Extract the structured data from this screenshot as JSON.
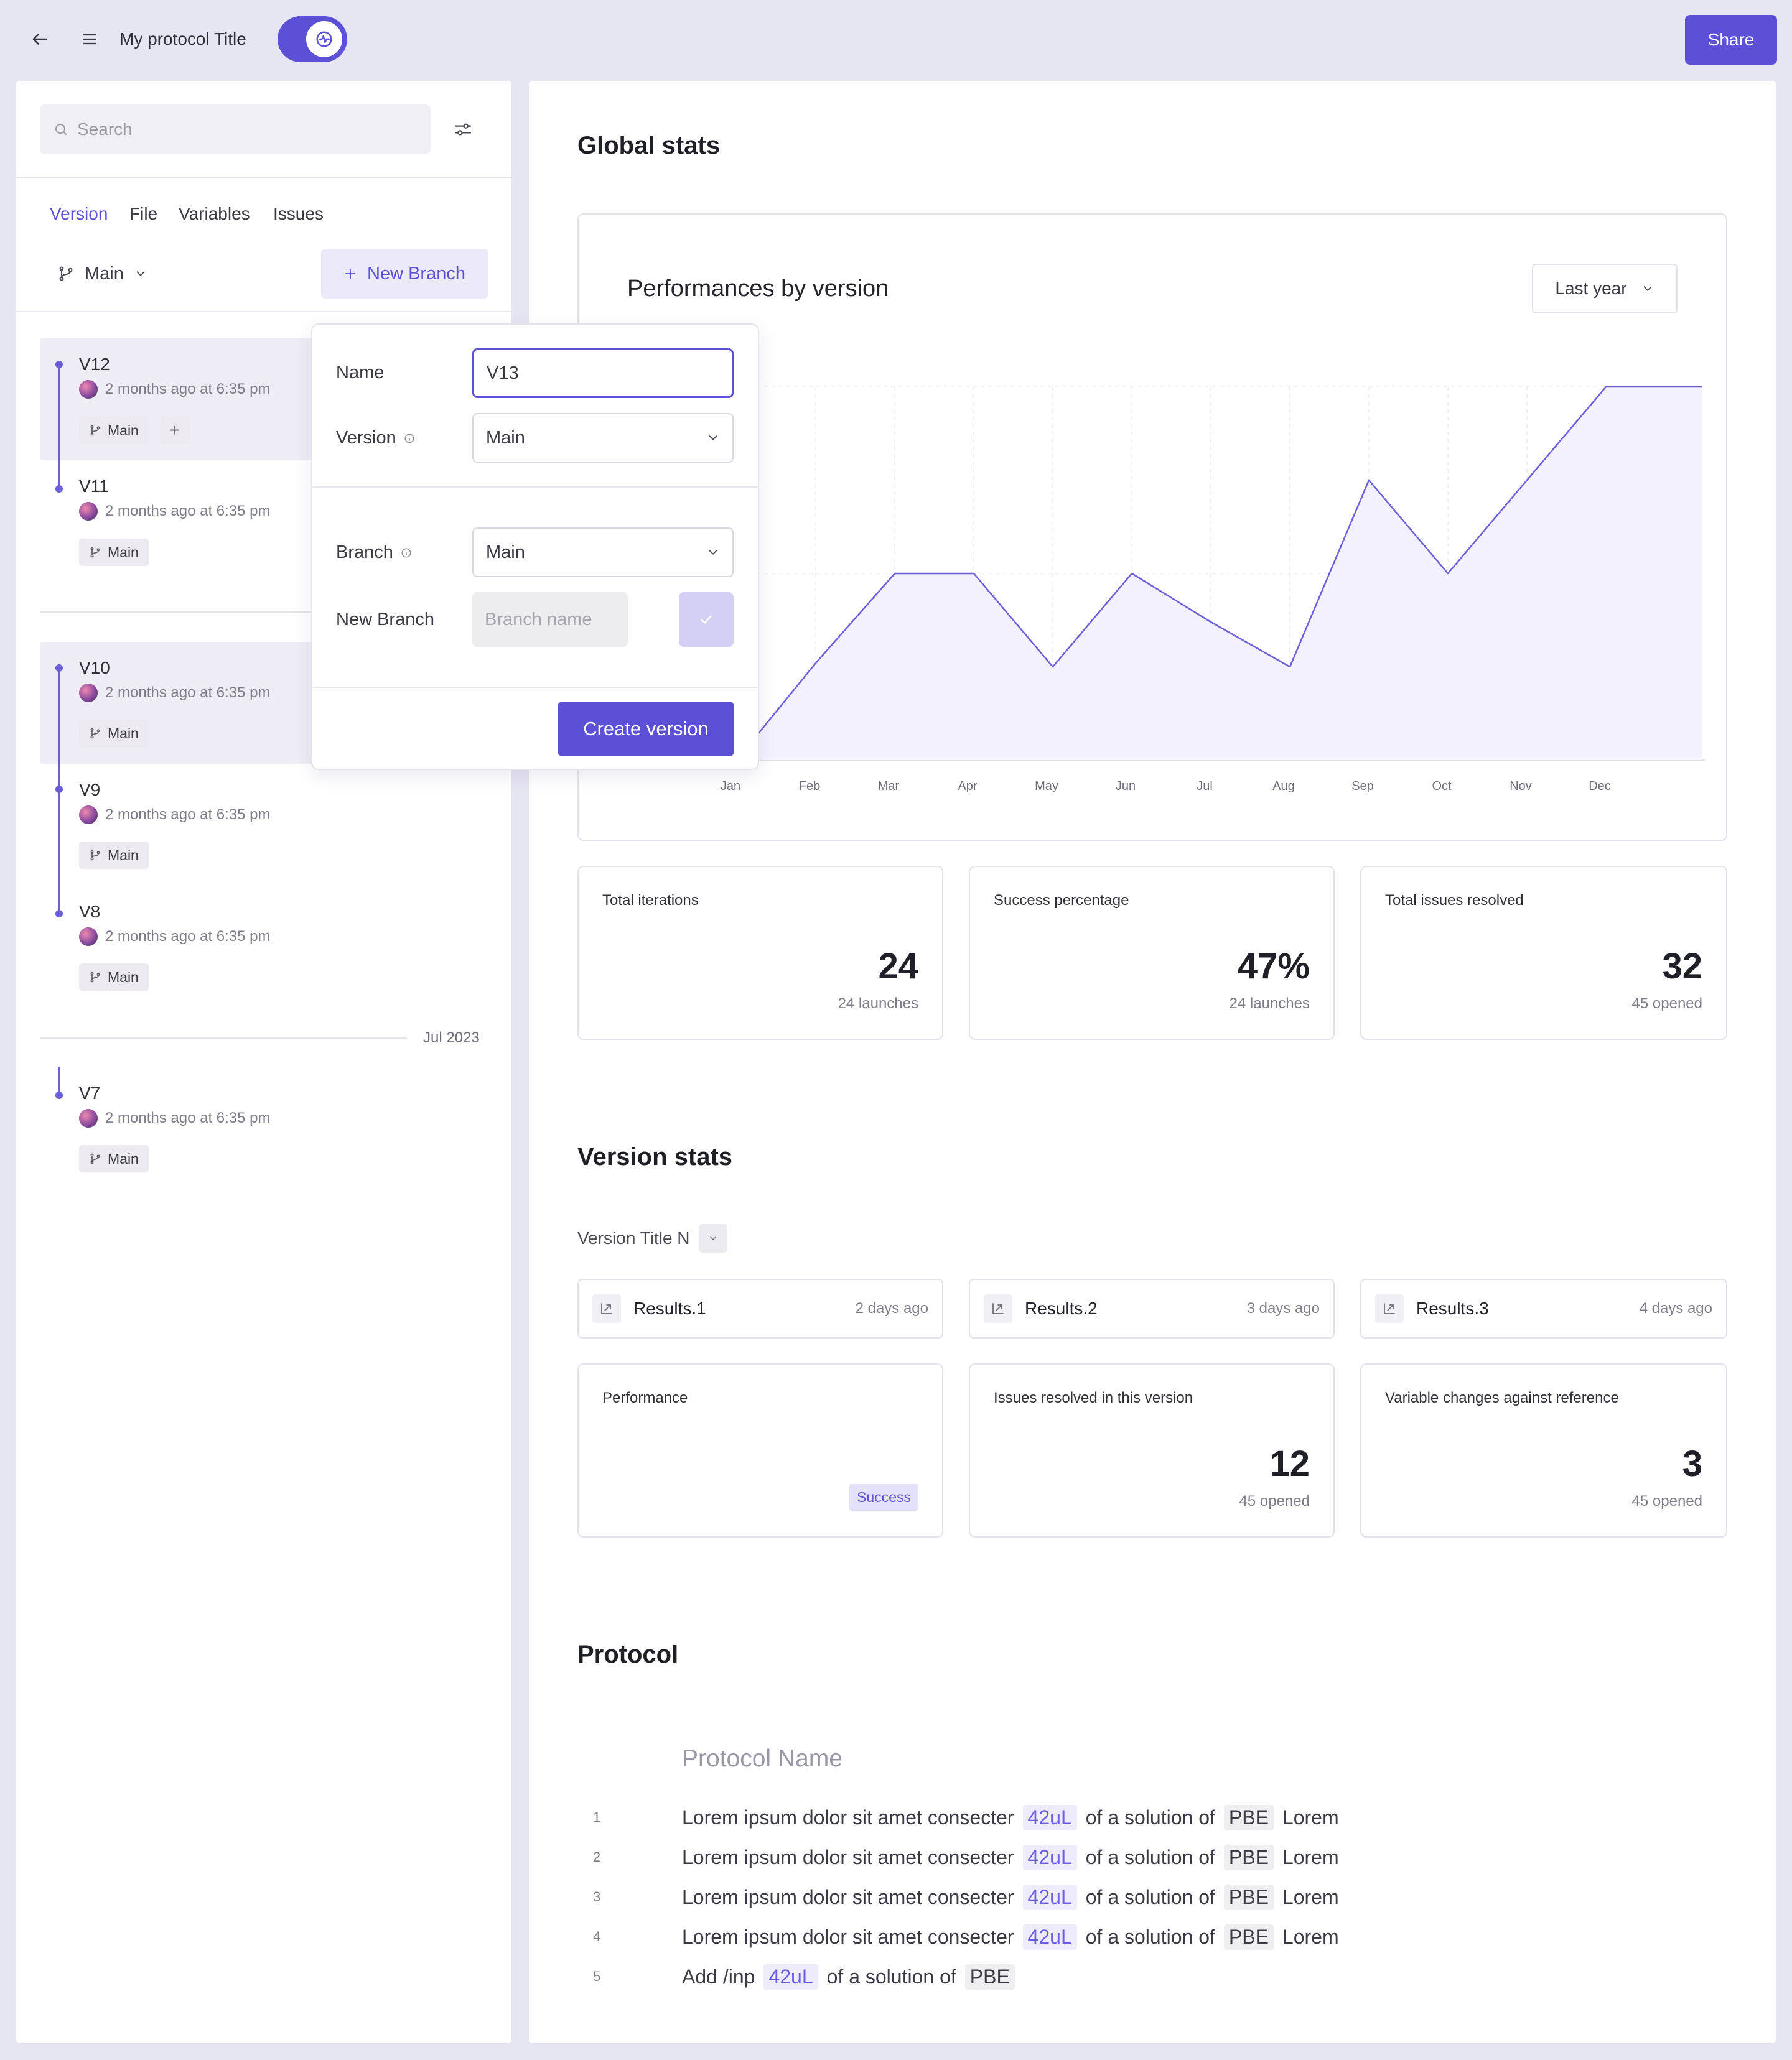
{
  "topbar": {
    "title": "My protocol Title",
    "share_label": "Share"
  },
  "sidebar": {
    "search_placeholder": "Search",
    "tabs": [
      "Version",
      "File",
      "Variables",
      "Issues"
    ],
    "branch_selector": "Main",
    "new_branch_label": "New Branch",
    "month_separator": "Jul 2023",
    "versions": [
      {
        "title": "V12",
        "meta": "2 months ago at 6:35 pm",
        "branch": "Main"
      },
      {
        "title": "V11",
        "meta": "2 months ago at 6:35 pm",
        "branch": "Main"
      },
      {
        "title": "V10",
        "meta": "2 months ago at 6:35 pm",
        "branch": "Main"
      },
      {
        "title": "V9",
        "meta": "2 months ago at 6:35 pm",
        "branch": "Main"
      },
      {
        "title": "V8",
        "meta": "2 months ago at 6:35 pm",
        "branch": "Main"
      },
      {
        "title": "V7",
        "meta": "2 months ago at 6:35 pm",
        "branch": "Main"
      }
    ]
  },
  "modal": {
    "name_label": "Name",
    "name_value": "V13",
    "version_label": "Version",
    "version_value": "Main",
    "branch_label": "Branch",
    "branch_value": "Main",
    "new_branch_label": "New Branch",
    "new_branch_placeholder": "Branch name",
    "create_label": "Create version"
  },
  "global_stats": {
    "heading": "Global stats",
    "chart_title": "Performances by version",
    "range_select": "Last year",
    "cards": [
      {
        "label": "Total iterations",
        "value": "24",
        "sub": "24 launches"
      },
      {
        "label": "Success percentage",
        "value": "47%",
        "sub": "24 launches"
      },
      {
        "label": "Total issues resolved",
        "value": "32",
        "sub": "45 opened"
      }
    ]
  },
  "chart_data": {
    "type": "area",
    "title": "Performances by version",
    "categories": [
      "Jan",
      "Feb",
      "Mar",
      "Apr",
      "May",
      "Jun",
      "Jul",
      "Aug",
      "Sep",
      "Oct",
      "Nov",
      "Dec"
    ],
    "values": [
      0,
      26,
      50,
      50,
      25,
      50,
      37,
      25,
      75,
      50,
      75,
      100
    ],
    "ylim": [
      0,
      100
    ],
    "grid": true,
    "legend": "none",
    "colors": {
      "line": "#6b5fd8",
      "fill": "#f3f1fd"
    }
  },
  "version_stats": {
    "heading": "Version stats",
    "version_select": "Version Title N",
    "results": [
      {
        "name": "Results.1",
        "time": "2 days ago"
      },
      {
        "name": "Results.2",
        "time": "3 days ago"
      },
      {
        "name": "Results.3",
        "time": "4 days ago"
      }
    ],
    "cards": [
      {
        "label": "Performance",
        "badge": "Success"
      },
      {
        "label": "Issues resolved in this version",
        "value": "12",
        "sub": "45 opened"
      },
      {
        "label": "Variable changes against reference",
        "value": "3",
        "sub": "45 opened"
      }
    ]
  },
  "protocol": {
    "heading": "Protocol",
    "name_placeholder": "Protocol Name",
    "lines": [
      {
        "num": "1",
        "text": "Lorem ipsum dolor sit amet consecter",
        "qty": "42uL",
        "mid": "of a solution of",
        "reagent": "PBE",
        "tail": "Lorem"
      },
      {
        "num": "2",
        "text": "Lorem ipsum dolor sit amet consecter",
        "qty": "42uL",
        "mid": "of a solution of",
        "reagent": "PBE",
        "tail": "Lorem"
      },
      {
        "num": "3",
        "text": "Lorem ipsum dolor sit amet consecter",
        "qty": "42uL",
        "mid": "of a solution of",
        "reagent": "PBE",
        "tail": "Lorem"
      },
      {
        "num": "4",
        "text": "Lorem ipsum dolor sit amet consecter",
        "qty": "42uL",
        "mid": "of a solution of",
        "reagent": "PBE",
        "tail": "Lorem"
      },
      {
        "num": "5",
        "text": "Add /inp",
        "qty": "42uL",
        "mid": "of a solution of",
        "reagent": "PBE",
        "tail": ""
      }
    ]
  },
  "colors": {
    "accent": "#5b50d6",
    "background": "#e6e5f2",
    "chart_line": "#6b5fd8"
  }
}
